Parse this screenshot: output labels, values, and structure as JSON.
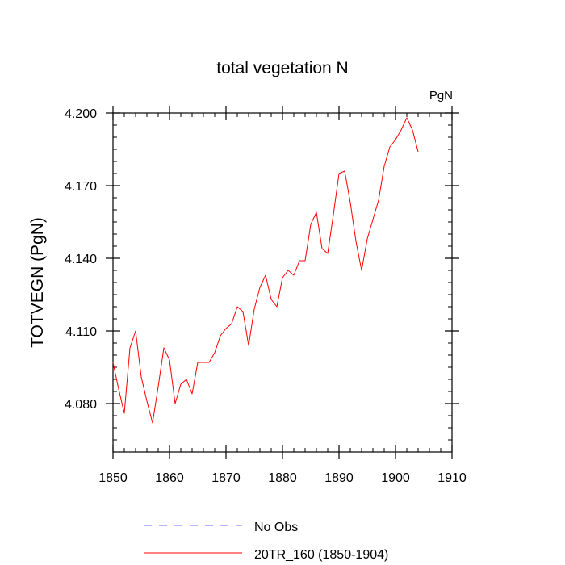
{
  "chart_data": {
    "type": "line",
    "title": "total vegetation N",
    "units": "PgN",
    "xlabel": "",
    "ylabel": "TOTVEGN  (PgN)",
    "xlim": [
      1850,
      1910
    ],
    "ylim": [
      4.06,
      4.2
    ],
    "x_ticks": [
      1850,
      1860,
      1870,
      1880,
      1890,
      1900,
      1910
    ],
    "x_tick_labels": [
      "1850",
      "1860",
      "1870",
      "1880",
      "1890",
      "1900",
      "1910"
    ],
    "y_ticks": [
      4.08,
      4.11,
      4.14,
      4.17,
      4.2
    ],
    "y_tick_labels": [
      "4.080",
      "4.110",
      "4.140",
      "4.170",
      "4.200"
    ],
    "legend": [
      {
        "label": "No Obs",
        "color": "#0000ff",
        "style": "dashed"
      },
      {
        "label": "20TR_160 (1850-1904)",
        "color": "#ff0000",
        "style": "solid"
      }
    ],
    "series": [
      {
        "name": "20TR_160 (1850-1904)",
        "color": "#ff0000",
        "x": [
          1850,
          1851,
          1852,
          1853,
          1854,
          1855,
          1856,
          1857,
          1858,
          1859,
          1860,
          1861,
          1862,
          1863,
          1864,
          1865,
          1866,
          1867,
          1868,
          1869,
          1870,
          1871,
          1872,
          1873,
          1874,
          1875,
          1876,
          1877,
          1878,
          1879,
          1880,
          1881,
          1882,
          1883,
          1884,
          1885,
          1886,
          1887,
          1888,
          1889,
          1890,
          1891,
          1892,
          1893,
          1894,
          1895,
          1896,
          1897,
          1898,
          1899,
          1900,
          1901,
          1902,
          1903,
          1904
        ],
        "values": [
          4.097,
          4.086,
          4.076,
          4.103,
          4.11,
          4.091,
          4.081,
          4.072,
          4.087,
          4.103,
          4.098,
          4.08,
          4.088,
          4.09,
          4.084,
          4.097,
          4.097,
          4.097,
          4.101,
          4.108,
          4.111,
          4.113,
          4.12,
          4.118,
          4.104,
          4.119,
          4.128,
          4.133,
          4.123,
          4.12,
          4.132,
          4.135,
          4.133,
          4.139,
          4.139,
          4.154,
          4.159,
          4.144,
          4.142,
          4.158,
          4.175,
          4.176,
          4.163,
          4.147,
          4.135,
          4.148,
          4.156,
          4.164,
          4.178,
          4.186,
          4.189,
          4.193,
          4.198,
          4.193,
          4.184
        ]
      }
    ]
  }
}
